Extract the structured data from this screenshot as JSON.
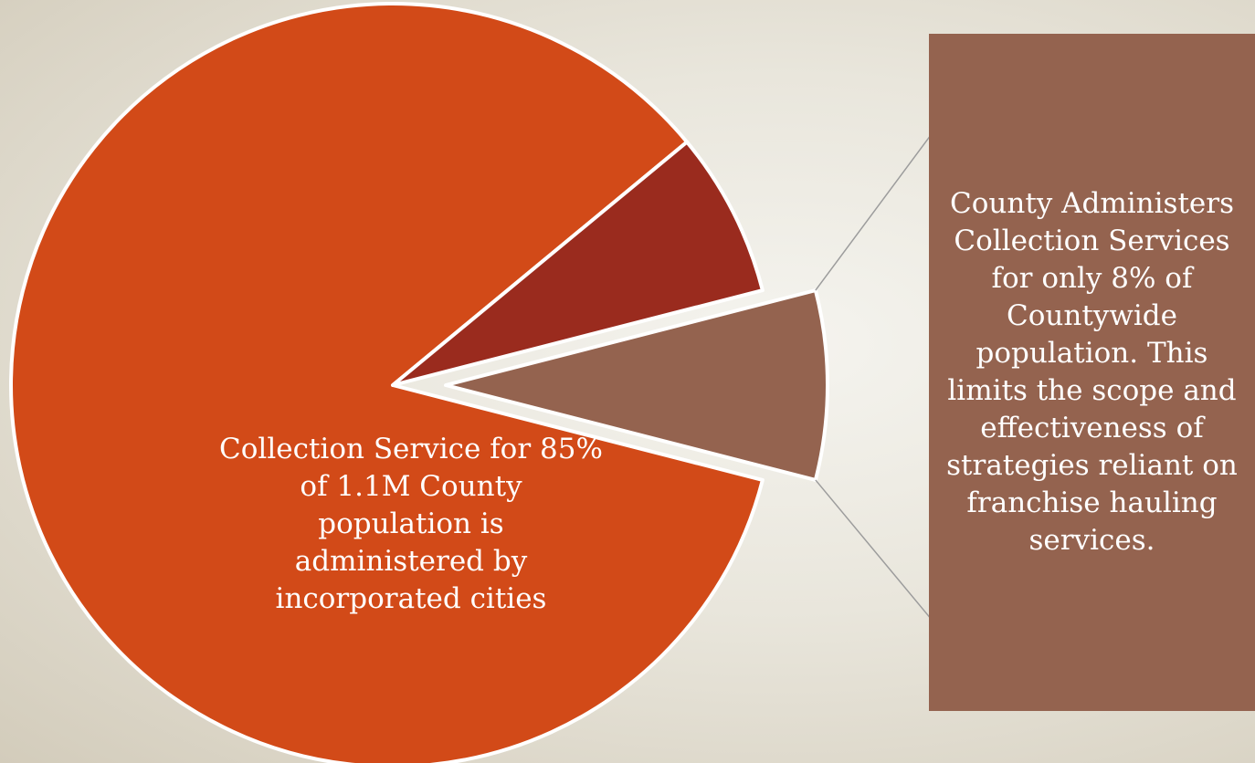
{
  "chart_data": {
    "type": "pie",
    "slices": [
      {
        "value": 85,
        "color": "#d24a18",
        "label": "Collection Service for 85% of 1.1M County population is administered by incorporated cities"
      },
      {
        "value": 7,
        "color": "#9a2b1e"
      },
      {
        "value": 8,
        "color": "#94634f",
        "label": "County Administers Collection Services for only 8% of Countywide population. This limits the scope and effectiveness of  strategies reliant on franchise hauling services.",
        "exploded": true
      }
    ]
  },
  "labels": {
    "main": "Collection Service for 85% of 1.1M County population is administered by incorporated cities",
    "callout": "County Administers Collection Services for only 8% of Countywide population. This limits the scope and effectiveness of  strategies reliant on franchise hauling services."
  }
}
